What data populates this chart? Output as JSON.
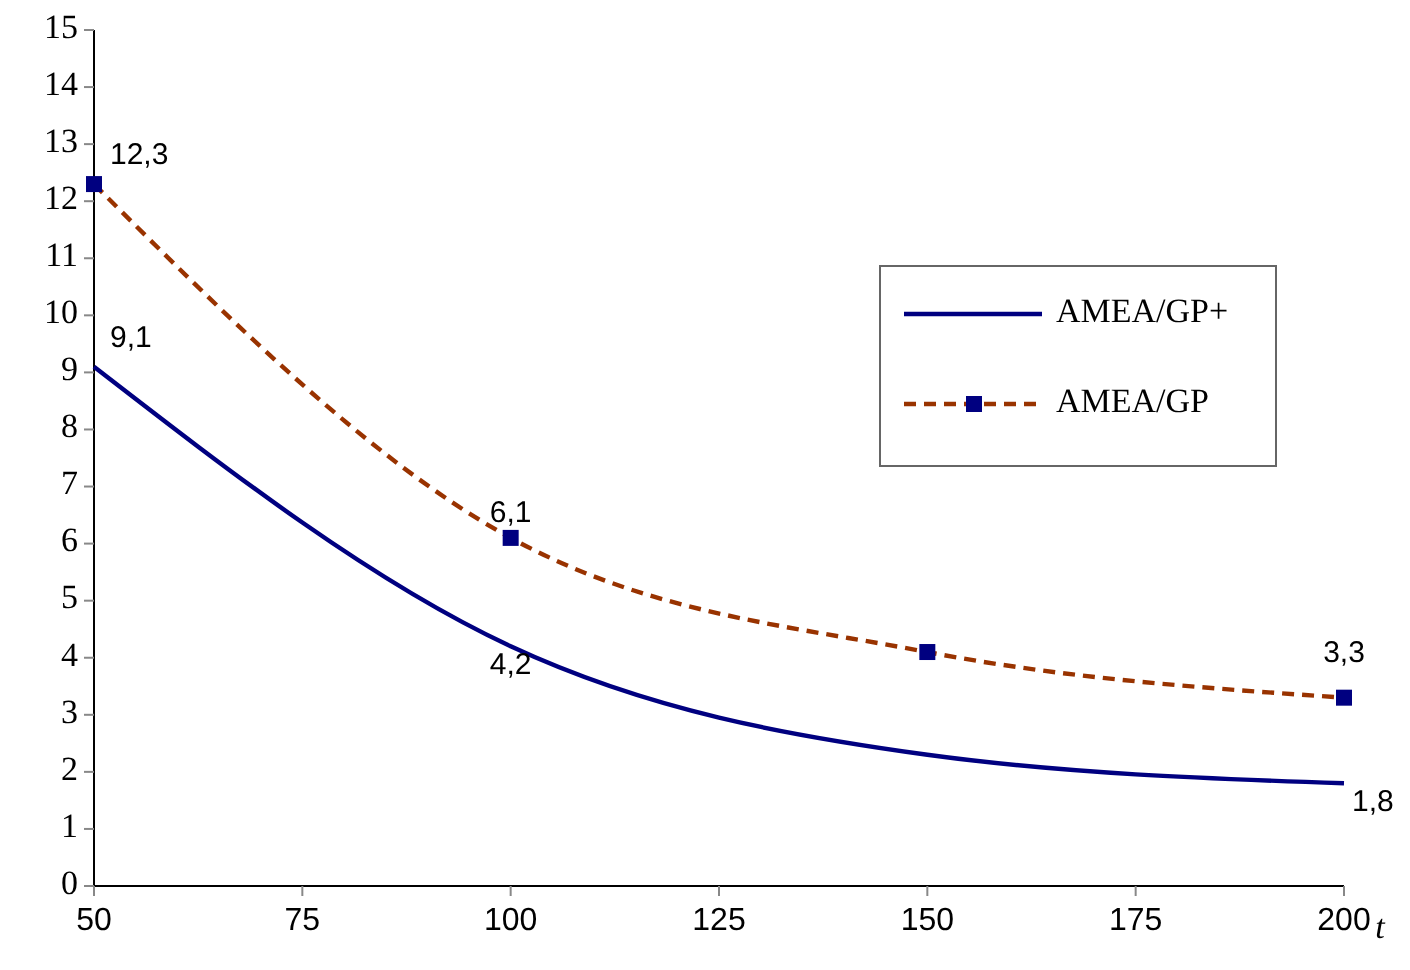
{
  "chart_data": {
    "type": "line",
    "xlabel": "t",
    "x": [
      50,
      100,
      150,
      200
    ],
    "xlim": [
      50,
      200
    ],
    "xticks": [
      50,
      75,
      100,
      125,
      150,
      175,
      200
    ],
    "ylim": [
      0,
      15
    ],
    "yticks": [
      0,
      1,
      2,
      3,
      4,
      5,
      6,
      7,
      8,
      9,
      10,
      11,
      12,
      13,
      14,
      15
    ],
    "grid": false,
    "legend": "right",
    "series": [
      {
        "name": "AMEA/GP+",
        "color": "#000080",
        "values": [
          9.1,
          4.2,
          2.3,
          1.8
        ],
        "value_labels": [
          "9,1",
          "4,2",
          null,
          "1,8"
        ],
        "marker": "none",
        "line_style": "solid"
      },
      {
        "name": "AMEA/GP",
        "color": "#993300",
        "values": [
          12.3,
          6.1,
          4.1,
          3.3
        ],
        "value_labels": [
          "12,3",
          "6,1",
          null,
          "3,3"
        ],
        "marker": "square",
        "line_style": "dashed"
      }
    ]
  }
}
